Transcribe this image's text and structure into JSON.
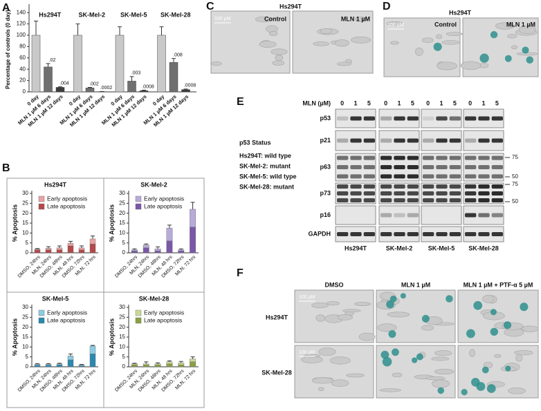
{
  "panel_labels": [
    "A",
    "B",
    "C",
    "D",
    "E",
    "F"
  ],
  "chart_data": [
    {
      "type": "bar",
      "ylabel": "Percentage of controls (0 day)",
      "groups": [
        "Hs294T",
        "SK-Mel-2",
        "SK-Mel-5",
        "SK-Mel-28"
      ],
      "series": [
        {
          "name": "0 day",
          "color": "#c9c9c9",
          "values": [
            100,
            100,
            100,
            100
          ],
          "errors": [
            25,
            20,
            15,
            15
          ]
        },
        {
          "name": "MLN 1 µM 6 days",
          "color": "#707070",
          "values": [
            44,
            7,
            19,
            52
          ],
          "errors": [
            6,
            1,
            8,
            7
          ],
          "annotations": [
            ".02",
            ".002",
            ".003",
            ".008"
          ]
        },
        {
          "name": "MLN 1 µM 12 days",
          "color": "#3c3c3c",
          "values": [
            8,
            0.5,
            2,
            4
          ],
          "errors": [
            1,
            0.3,
            1,
            1
          ],
          "annotations": [
            ".004",
            ".0002",
            ".0008",
            ".0008"
          ]
        }
      ],
      "ylim": [
        0,
        150
      ],
      "yticks": [
        0,
        20,
        40,
        60,
        80,
        100,
        120,
        140
      ]
    },
    {
      "type": "stacked_bar",
      "title": "Hs294T",
      "ylabel": "% Apoptosis",
      "categories": [
        "DMSO, 24hrs",
        "MLN, 24hrs",
        "DMSO, 48hrs",
        "MLN, 48 hrs",
        "DMSO, 72hrs",
        "MLN, 72 hrs"
      ],
      "series": [
        {
          "name": "Early apoptosis",
          "color": "#e8a3a3",
          "values": [
            0.4,
            0.8,
            1,
            1.3,
            1,
            2.5
          ],
          "errors": [
            0.3,
            0.8,
            1,
            1,
            1,
            1.5
          ]
        },
        {
          "name": "Late apoptosis",
          "color": "#b54848",
          "values": [
            1.5,
            1.5,
            1.5,
            3.5,
            1.5,
            4.5
          ]
        }
      ],
      "ylim": [
        0,
        30
      ],
      "yticks": [
        0,
        5,
        10,
        15,
        20,
        25,
        30
      ],
      "legend": "upper-left"
    },
    {
      "type": "stacked_bar",
      "title": "SK-Mel-2",
      "ylabel": "% Apoptosis",
      "categories": [
        "DMSO, 24hrs",
        "MLN, 24hrs",
        "DMSO, 48hrs",
        "MLN, 48 hrs",
        "DMSO, 72hrs",
        "MLN, 72 hrs"
      ],
      "series": [
        {
          "name": "Early apoptosis",
          "color": "#b9abd9",
          "values": [
            0.5,
            1.5,
            1,
            6.5,
            0.5,
            9
          ],
          "errors": [
            0.5,
            0.5,
            1,
            1.5,
            0.5,
            3.5
          ]
        },
        {
          "name": "Late apoptosis",
          "color": "#7a58a8",
          "values": [
            1,
            2.5,
            1,
            6,
            1,
            13
          ]
        }
      ],
      "ylim": [
        0,
        30
      ],
      "yticks": [
        0,
        5,
        10,
        15,
        20,
        25,
        30
      ],
      "legend": "upper-left"
    },
    {
      "type": "stacked_bar",
      "title": "SK-Mel-5",
      "ylabel": "% Apoptosis",
      "categories": [
        "DMSO, 24hrs",
        "MLN, 24hrs",
        "DMSO, 48hrs",
        "MLN, 48 hrs",
        "DMSO, 72hrs",
        "MLN, 72 hrs"
      ],
      "series": [
        {
          "name": "Early apoptosis",
          "color": "#8dcbe0",
          "values": [
            0.5,
            0.5,
            0.5,
            2,
            0.5,
            4
          ],
          "errors": [
            0.3,
            0.3,
            0.3,
            1,
            0.2,
            0.3
          ]
        },
        {
          "name": "Late apoptosis",
          "color": "#2a89b0",
          "values": [
            0.8,
            0.8,
            1,
            3.5,
            0.5,
            6.5
          ]
        }
      ],
      "ylim": [
        0,
        30
      ],
      "yticks": [
        0,
        5,
        10,
        15,
        20,
        25,
        30
      ],
      "legend": "upper-left"
    },
    {
      "type": "stacked_bar",
      "title": "SK-Mel-28",
      "ylabel": "% Apoptosis",
      "categories": [
        "DMSO, 24hrs",
        "MLN, 24hrs",
        "DMSO, 48hrs",
        "MLN, 48 hrs",
        "DMSO, 72hrs",
        "MLN, 72 hrs"
      ],
      "series": [
        {
          "name": "Early apoptosis",
          "color": "#c9d99b",
          "values": [
            0.5,
            0.5,
            0.5,
            1,
            1,
            1.5
          ],
          "errors": [
            0.3,
            1,
            0.5,
            0.5,
            0.7,
            1
          ]
        },
        {
          "name": "Late apoptosis",
          "color": "#8aa040",
          "values": [
            1,
            1,
            1,
            1.5,
            1,
            2.5
          ]
        }
      ],
      "ylim": [
        0,
        30
      ],
      "yticks": [
        0,
        5,
        10,
        15,
        20,
        25,
        30
      ],
      "legend": "upper-left"
    }
  ],
  "panel_c": {
    "title": "Hs294T",
    "scale_bar": "100 µM",
    "images": [
      "Control",
      "MLN 1 µM"
    ]
  },
  "panel_d": {
    "title": "Hs294T",
    "scale_bar": "100 µM",
    "images": [
      "Control",
      "MLN 1 µM"
    ]
  },
  "panel_e": {
    "dose_header": "MLN (µM)",
    "doses": [
      "0",
      "1",
      "5"
    ],
    "proteins": [
      "p53",
      "p21",
      "p63",
      "p73",
      "p16",
      "GAPDH"
    ],
    "p63_markers": [
      "75",
      "50"
    ],
    "p73_markers": [
      "75",
      "50"
    ],
    "cell_lines": [
      "Hs294T",
      "SK-Mel-2",
      "SK-Mel-5",
      "SK-Mel-28"
    ],
    "status_title": "p53 Status",
    "status": [
      "Hs294T: wild type",
      "SK-Mel-2: mutant",
      "SK-Mel-5: wild type",
      "SK-Mel-28: mutant"
    ]
  },
  "panel_f": {
    "columns": [
      "DMSO",
      "MLN 1 µM",
      "MLN 1 µM + PTF-α 5 µM"
    ],
    "rows": [
      "Hs294T",
      "SK-Mel-28"
    ],
    "scale_bar": "100 µM"
  }
}
